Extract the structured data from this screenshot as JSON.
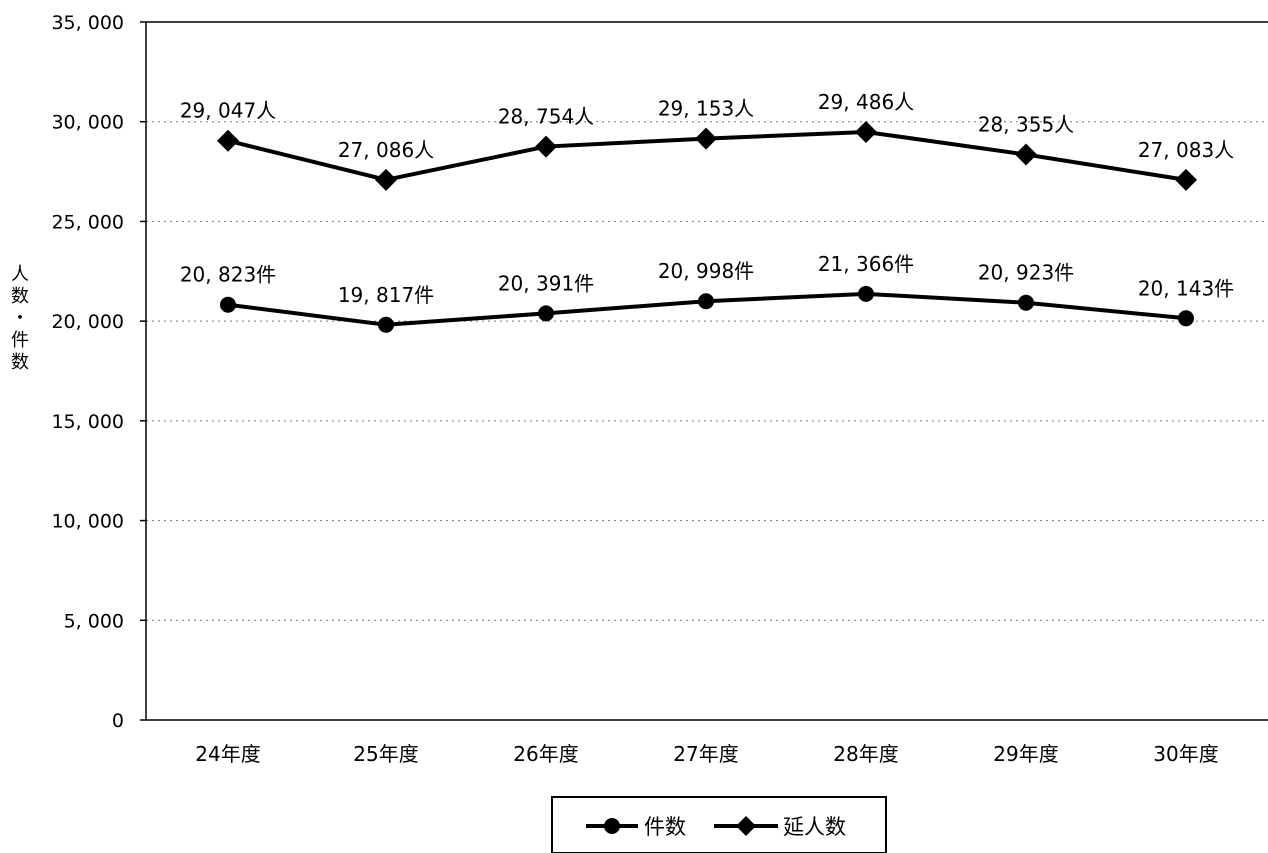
{
  "chart_data": {
    "type": "line",
    "ylabel": "人数・件数",
    "xlabel": "",
    "title": "",
    "ylim": [
      0,
      35000
    ],
    "yticks": [
      0,
      5000,
      10000,
      15000,
      20000,
      25000,
      30000,
      35000
    ],
    "ytick_labels": [
      "0",
      "5, 000",
      "10, 000",
      "15, 000",
      "20, 000",
      "25, 000",
      "30, 000",
      "35, 000"
    ],
    "categories": [
      "24年度",
      "25年度",
      "26年度",
      "27年度",
      "28年度",
      "29年度",
      "30年度"
    ],
    "grid": "horizontal dotted",
    "legend_position": "bottom-center",
    "series": [
      {
        "name": "件数",
        "marker": "circle",
        "values": [
          20823,
          19817,
          20391,
          20998,
          21366,
          20923,
          20143
        ],
        "labels": [
          "20, 823件",
          "19, 817件",
          "20, 391件",
          "20, 998件",
          "21, 366件",
          "20, 923件",
          "20, 143件"
        ]
      },
      {
        "name": "延人数",
        "marker": "diamond",
        "values": [
          29047,
          27086,
          28754,
          29153,
          29486,
          28355,
          27083
        ],
        "labels": [
          "29, 047人",
          "27, 086人",
          "28, 754人",
          "29, 153人",
          "29, 486人",
          "28, 355人",
          "27, 083人"
        ]
      }
    ],
    "colors": {
      "line": "#000000",
      "background": "#ffffff"
    }
  }
}
